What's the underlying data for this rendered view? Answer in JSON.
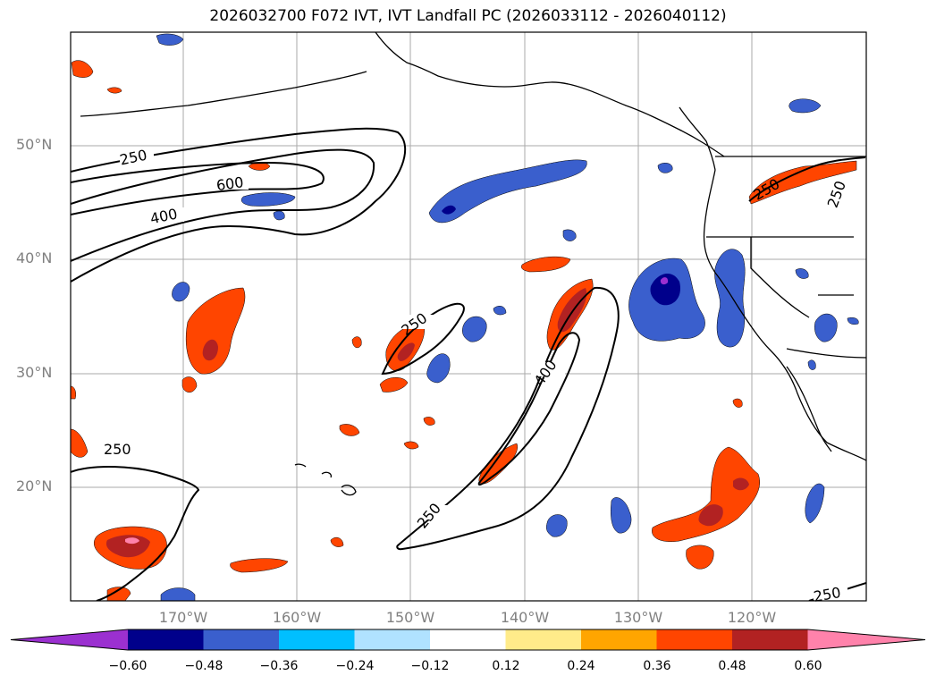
{
  "title": "2026032700 F072 IVT, IVT Landfall PC (2026033112 - 2026040112)",
  "lat_labels": [
    "50°N",
    "40°N",
    "30°N",
    "20°N"
  ],
  "lon_labels": [
    "170°W",
    "160°W",
    "150°W",
    "140°W",
    "130°W",
    "120°W"
  ],
  "contour_labels": [
    "250",
    "600",
    "400",
    "250",
    "400",
    "250",
    "250",
    "250",
    "250",
    "250"
  ],
  "colorbar": {
    "colors": [
      "#9b30d0",
      "#00008b",
      "#3a5fcd",
      "#00bfff",
      "#b0e2ff",
      "#ffffff",
      "#ffeb8a",
      "#ffa500",
      "#ff4500",
      "#b22222",
      "#ff82ab"
    ],
    "tick_labels": [
      "−0.60",
      "−0.48",
      "−0.36",
      "−0.24",
      "−0.12",
      "0.12",
      "0.24",
      "0.36",
      "0.48",
      "0.60"
    ]
  }
}
